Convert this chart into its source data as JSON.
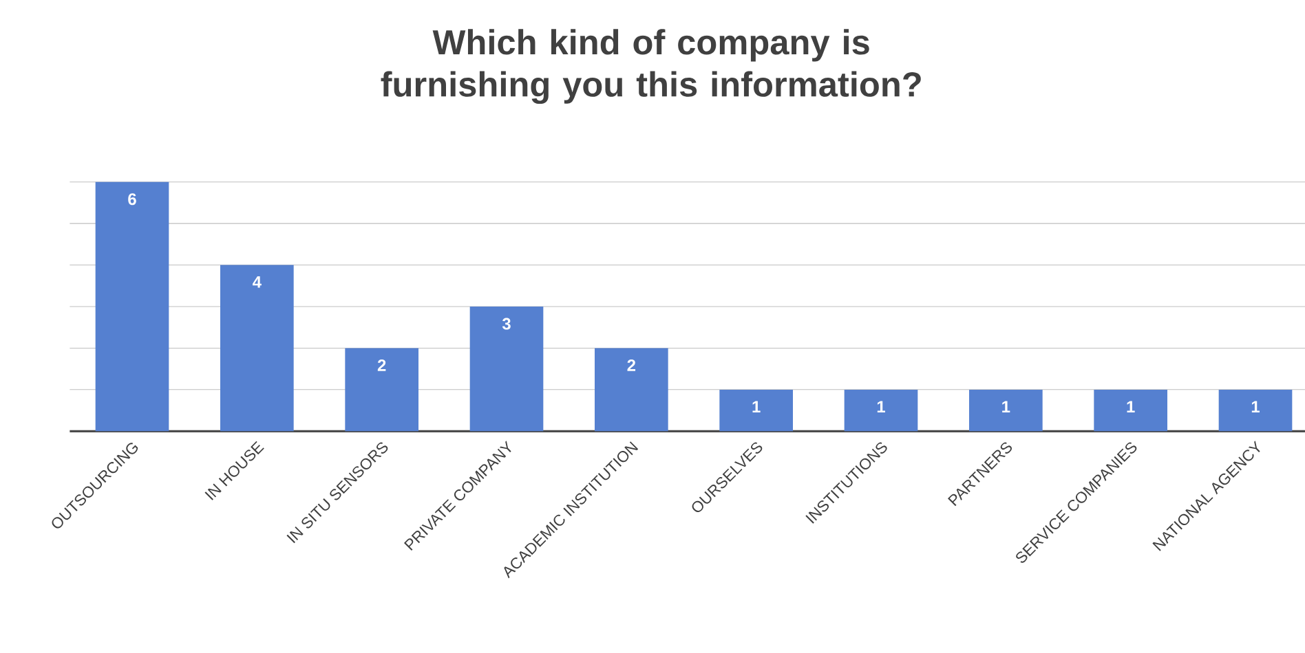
{
  "chart_data": {
    "type": "bar",
    "title": "Which kind of company is furnishing you this information?",
    "categories": [
      "OUTSOURCING",
      "IN HOUSE",
      "IN SITU SENSORS",
      "PRIVATE COMPANY",
      "ACADEMIC INSTITUTION",
      "OURSELVES",
      "INSTITUTIONS",
      "PARTNERS",
      "SERVICE COMPANIES",
      "NATIONAL AGENCY"
    ],
    "values": [
      6,
      4,
      2,
      3,
      2,
      1,
      1,
      1,
      1,
      1
    ],
    "color": "#5580d0",
    "ylim": [
      0,
      6
    ],
    "yticks": [
      {
        "value": 1,
        "label": null
      },
      {
        "value": 2,
        "label": null
      },
      {
        "value": 3,
        "label": null
      },
      {
        "value": 4,
        "label": null
      },
      {
        "value": 5,
        "label": null
      },
      {
        "value": 6,
        "label": null
      }
    ],
    "grid": "y",
    "tick_labels": "x",
    "data_labels": true
  }
}
